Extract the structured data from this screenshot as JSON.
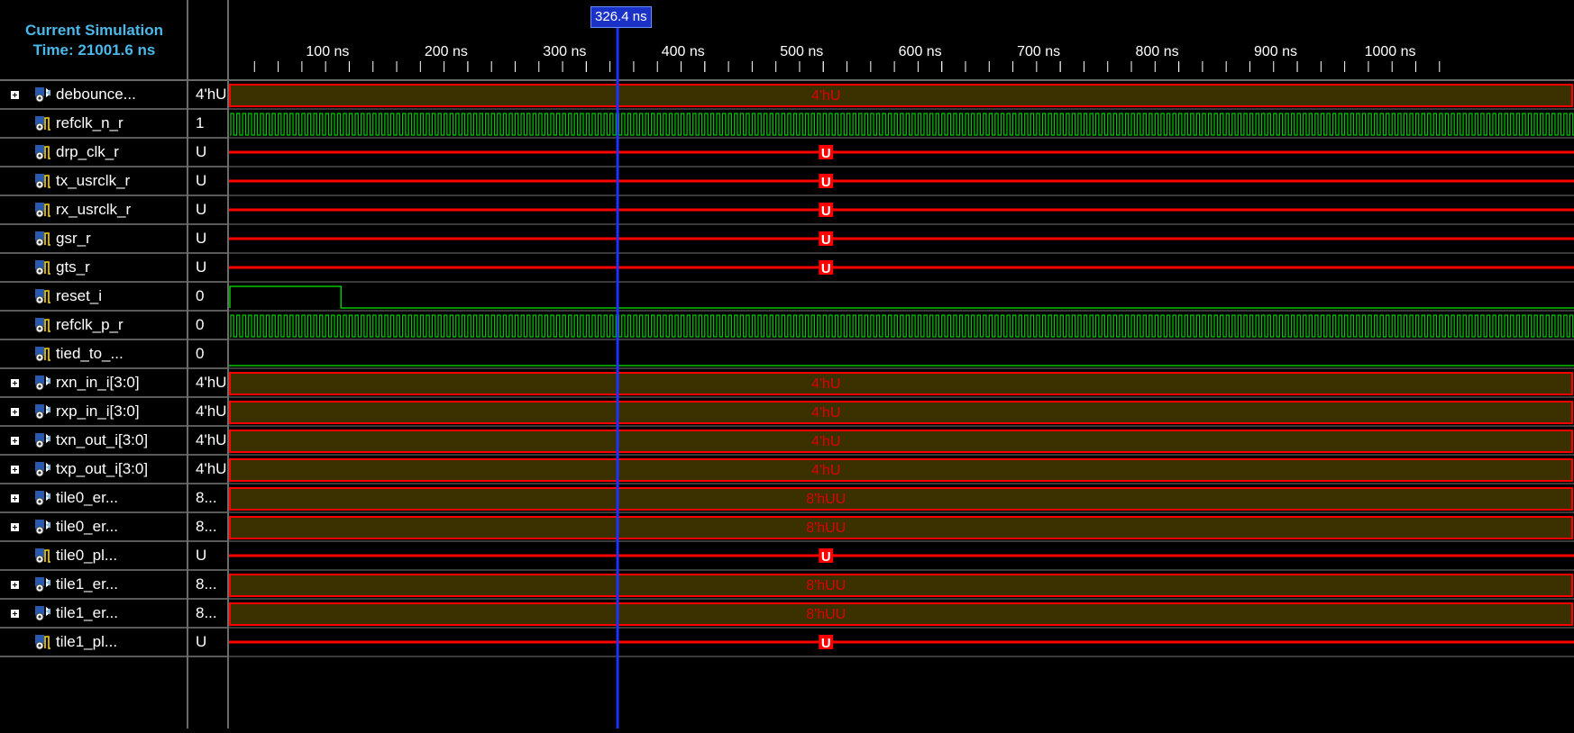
{
  "header": {
    "sim_time_line1": "Current Simulation",
    "sim_time_line2": "Time: 21001.6 ns"
  },
  "cursor": {
    "label": "326.4 ns",
    "time_ns": 326.4
  },
  "timeline": {
    "ticks": [
      {
        "label": "100 ns",
        "t": 100
      },
      {
        "label": "200 ns",
        "t": 200
      },
      {
        "label": "300 ns",
        "t": 300
      },
      {
        "label": "400 ns",
        "t": 400
      },
      {
        "label": "500 ns",
        "t": 500
      },
      {
        "label": "600 ns",
        "t": 600
      },
      {
        "label": "700 ns",
        "t": 700
      },
      {
        "label": "800 ns",
        "t": 800
      },
      {
        "label": "900 ns",
        "t": 900
      },
      {
        "label": "1000 ns",
        "t": 1000
      }
    ],
    "minor_step_ns": 20,
    "end_ns": 1000
  },
  "colors": {
    "bus_fill": "#3a3000",
    "undefined": "#ff0000",
    "logic": "#00c800",
    "cursor": "#2030ff",
    "tick_label": "#ffffff",
    "bus_text": "#e00000"
  },
  "signals": [
    {
      "name": "debounce...",
      "value": "4'hU",
      "type": "bus",
      "expandable": true,
      "wave": {
        "kind": "bus",
        "text": "4'hU"
      }
    },
    {
      "name": "refclk_n_r",
      "value": "1",
      "type": "bit",
      "expandable": false,
      "wave": {
        "kind": "clock",
        "period_ns": 5
      }
    },
    {
      "name": "drp_clk_r",
      "value": "U",
      "type": "bit",
      "expandable": false,
      "wave": {
        "kind": "undef",
        "text": "U"
      }
    },
    {
      "name": "tx_usrclk_r",
      "value": "U",
      "type": "bit",
      "expandable": false,
      "wave": {
        "kind": "undef",
        "text": "U"
      }
    },
    {
      "name": "rx_usrclk_r",
      "value": "U",
      "type": "bit",
      "expandable": false,
      "wave": {
        "kind": "undef",
        "text": "U"
      }
    },
    {
      "name": "gsr_r",
      "value": "U",
      "type": "bit",
      "expandable": false,
      "wave": {
        "kind": "undef",
        "text": "U"
      }
    },
    {
      "name": "gts_r",
      "value": "U",
      "type": "bit",
      "expandable": false,
      "wave": {
        "kind": "undef",
        "text": "U"
      }
    },
    {
      "name": "reset_i",
      "value": "0",
      "type": "bit",
      "expandable": false,
      "wave": {
        "kind": "pulse",
        "high_until_ns": 93
      }
    },
    {
      "name": "refclk_p_r",
      "value": "0",
      "type": "bit",
      "expandable": false,
      "wave": {
        "kind": "clock",
        "period_ns": 5
      }
    },
    {
      "name": "tied_to_...",
      "value": "0",
      "type": "bit",
      "expandable": false,
      "wave": {
        "kind": "low"
      }
    },
    {
      "name": "rxn_in_i[3:0]",
      "value": "4'hU",
      "type": "bus",
      "expandable": true,
      "wave": {
        "kind": "bus",
        "text": "4'hU"
      }
    },
    {
      "name": "rxp_in_i[3:0]",
      "value": "4'hU",
      "type": "bus",
      "expandable": true,
      "wave": {
        "kind": "bus",
        "text": "4'hU"
      }
    },
    {
      "name": "txn_out_i[3:0]",
      "value": "4'hU",
      "type": "bus",
      "expandable": true,
      "wave": {
        "kind": "bus",
        "text": "4'hU"
      }
    },
    {
      "name": "txp_out_i[3:0]",
      "value": "4'hU",
      "type": "bus",
      "expandable": true,
      "wave": {
        "kind": "bus",
        "text": "4'hU"
      }
    },
    {
      "name": "tile0_er...",
      "value": "8...",
      "type": "bus",
      "expandable": true,
      "wave": {
        "kind": "bus",
        "text": "8'hUU"
      }
    },
    {
      "name": "tile0_er...",
      "value": "8...",
      "type": "bus",
      "expandable": true,
      "wave": {
        "kind": "bus",
        "text": "8'hUU"
      }
    },
    {
      "name": "tile0_pl...",
      "value": "U",
      "type": "bit",
      "expandable": false,
      "wave": {
        "kind": "undef",
        "text": "U"
      }
    },
    {
      "name": "tile1_er...",
      "value": "8...",
      "type": "bus",
      "expandable": true,
      "wave": {
        "kind": "bus",
        "text": "8'hUU"
      }
    },
    {
      "name": "tile1_er...",
      "value": "8...",
      "type": "bus",
      "expandable": true,
      "wave": {
        "kind": "bus",
        "text": "8'hUU"
      }
    },
    {
      "name": "tile1_pl...",
      "value": "U",
      "type": "bit",
      "expandable": false,
      "wave": {
        "kind": "undef",
        "text": "U"
      }
    }
  ]
}
